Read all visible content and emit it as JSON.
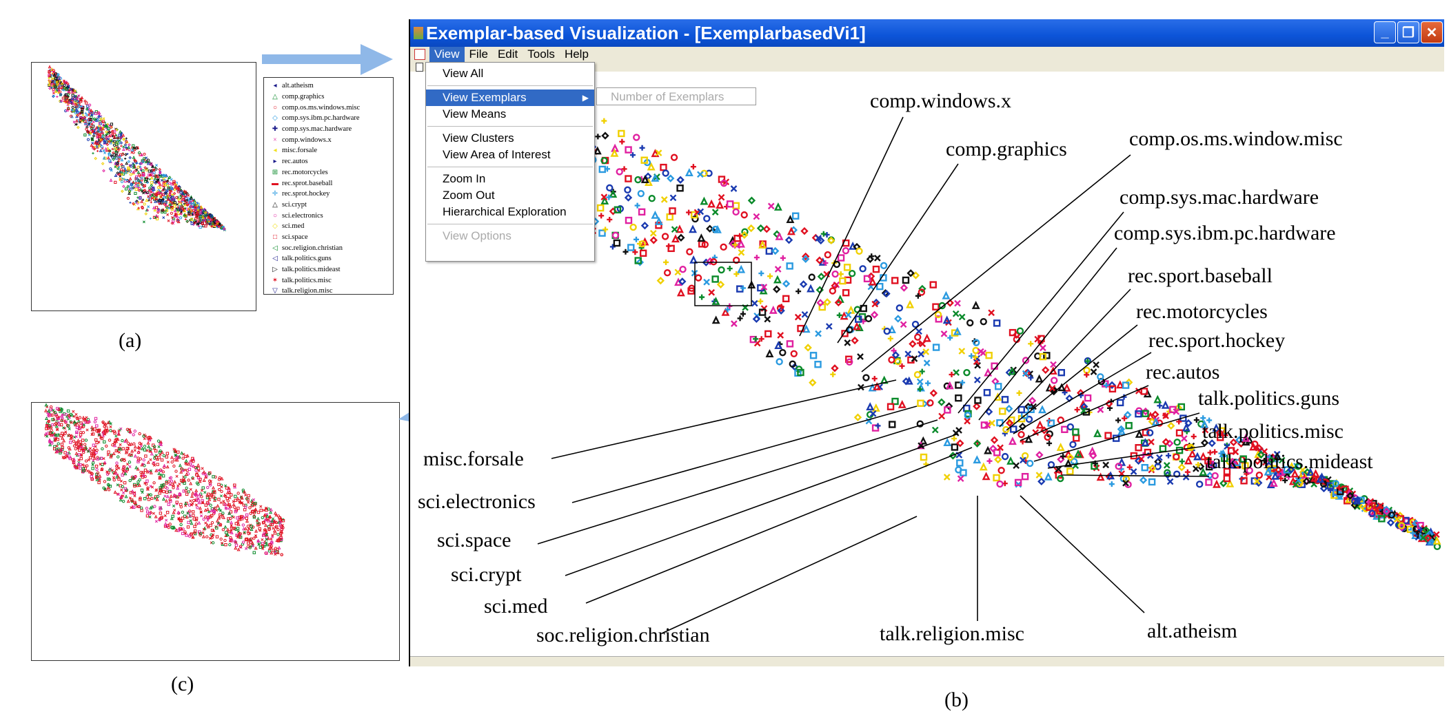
{
  "window": {
    "title": "Exemplar-based Visualization - [ExemplarbasedVi1]",
    "minimize_label": "_",
    "restore_label": "❐",
    "close_label": "✕"
  },
  "menubar": [
    "View",
    "File",
    "Edit",
    "Tools",
    "Help"
  ],
  "view_menu": {
    "items": [
      "View All",
      "View Exemplars",
      "View Means",
      "View Clusters",
      "View Area of Interest",
      "Zoom In",
      "Zoom Out",
      "Hierarchical Exploration",
      "View Options"
    ],
    "submenu_item": "Number of Exemplars"
  },
  "labels": {
    "comp_windows_x": "comp.windows.x",
    "comp_graphics": "comp.graphics",
    "comp_os_ms": "comp.os.ms.window.misc",
    "comp_sys_mac": "comp.sys.mac.hardware",
    "comp_sys_ibm": "comp.sys.ibm.pc.hardware",
    "rec_sport_baseball": "rec.sport.baseball",
    "rec_motorcycles": "rec.motorcycles",
    "rec_sport_hockey": "rec.sport.hockey",
    "rec_autos": "rec.autos",
    "talk_politics_guns": "talk.politics.guns",
    "talk_politics_misc": "talk.politics.misc",
    "talk_politics_mideast": "talk.politics.mideast",
    "misc_forsale": "misc.forsale",
    "sci_electronics": "sci.electronics",
    "sci_space": "sci.space",
    "sci_crypt": "sci.crypt",
    "sci_med": "sci.med",
    "soc_religion_christian": "soc.religion.christian",
    "talk_religion_misc": "talk.religion.misc",
    "alt_atheism": "alt.atheism"
  },
  "legend": [
    {
      "label": "alt.atheism",
      "symbol": "◂",
      "color": "#1a1a8a"
    },
    {
      "label": "comp.graphics",
      "symbol": "△",
      "color": "#0a8a2a"
    },
    {
      "label": "comp.os.ms.windows.misc",
      "symbol": "○",
      "color": "#e01020"
    },
    {
      "label": "comp.sys.ibm.pc.hardware",
      "symbol": "◇",
      "color": "#2a9ae0"
    },
    {
      "label": "comp.sys.mac.hardware",
      "symbol": "✚",
      "color": "#1a1a8a"
    },
    {
      "label": "comp.windows.x",
      "symbol": "×",
      "color": "#e020a0"
    },
    {
      "label": "misc.forsale",
      "symbol": "◂",
      "color": "#f0e020"
    },
    {
      "label": "rec.autos",
      "symbol": "▸",
      "color": "#1a1a8a"
    },
    {
      "label": "rec.motorcycles",
      "symbol": "⊞",
      "color": "#0a8a2a"
    },
    {
      "label": "rec.sprot.baseball",
      "symbol": "▬",
      "color": "#e01020"
    },
    {
      "label": "rec.sprot.hockey",
      "symbol": "✛",
      "color": "#2a9ae0"
    },
    {
      "label": "sci.crypt",
      "symbol": "△",
      "color": "#111111"
    },
    {
      "label": "sci.electronics",
      "symbol": "○",
      "color": "#e020a0"
    },
    {
      "label": "sci.med",
      "symbol": "◇",
      "color": "#f0e020"
    },
    {
      "label": "sci.space",
      "symbol": "□",
      "color": "#e01020"
    },
    {
      "label": "soc.religion.christian",
      "symbol": "◁",
      "color": "#0a8a2a"
    },
    {
      "label": "talk.politics.guns",
      "symbol": "◁",
      "color": "#1a1a8a"
    },
    {
      "label": "talk.politics.mideast",
      "symbol": "▷",
      "color": "#111111"
    },
    {
      "label": "talk.politics.misc",
      "symbol": "✶",
      "color": "#e01020"
    },
    {
      "label": "talk.religion.misc",
      "symbol": "▽",
      "color": "#1a1a8a"
    }
  ],
  "captions": {
    "a": "(a)",
    "b": "(b)",
    "c": "(c)"
  },
  "colors": {
    "title_bar": "#0c54d8",
    "menu_highlight": "#316ac5",
    "arrow": "#8fb8e8",
    "point_palette": [
      "#e01020",
      "#e01020",
      "#111111",
      "#0a8a2a",
      "#1a3ab0",
      "#e020a0",
      "#2a9ae0",
      "#f0d000"
    ]
  }
}
